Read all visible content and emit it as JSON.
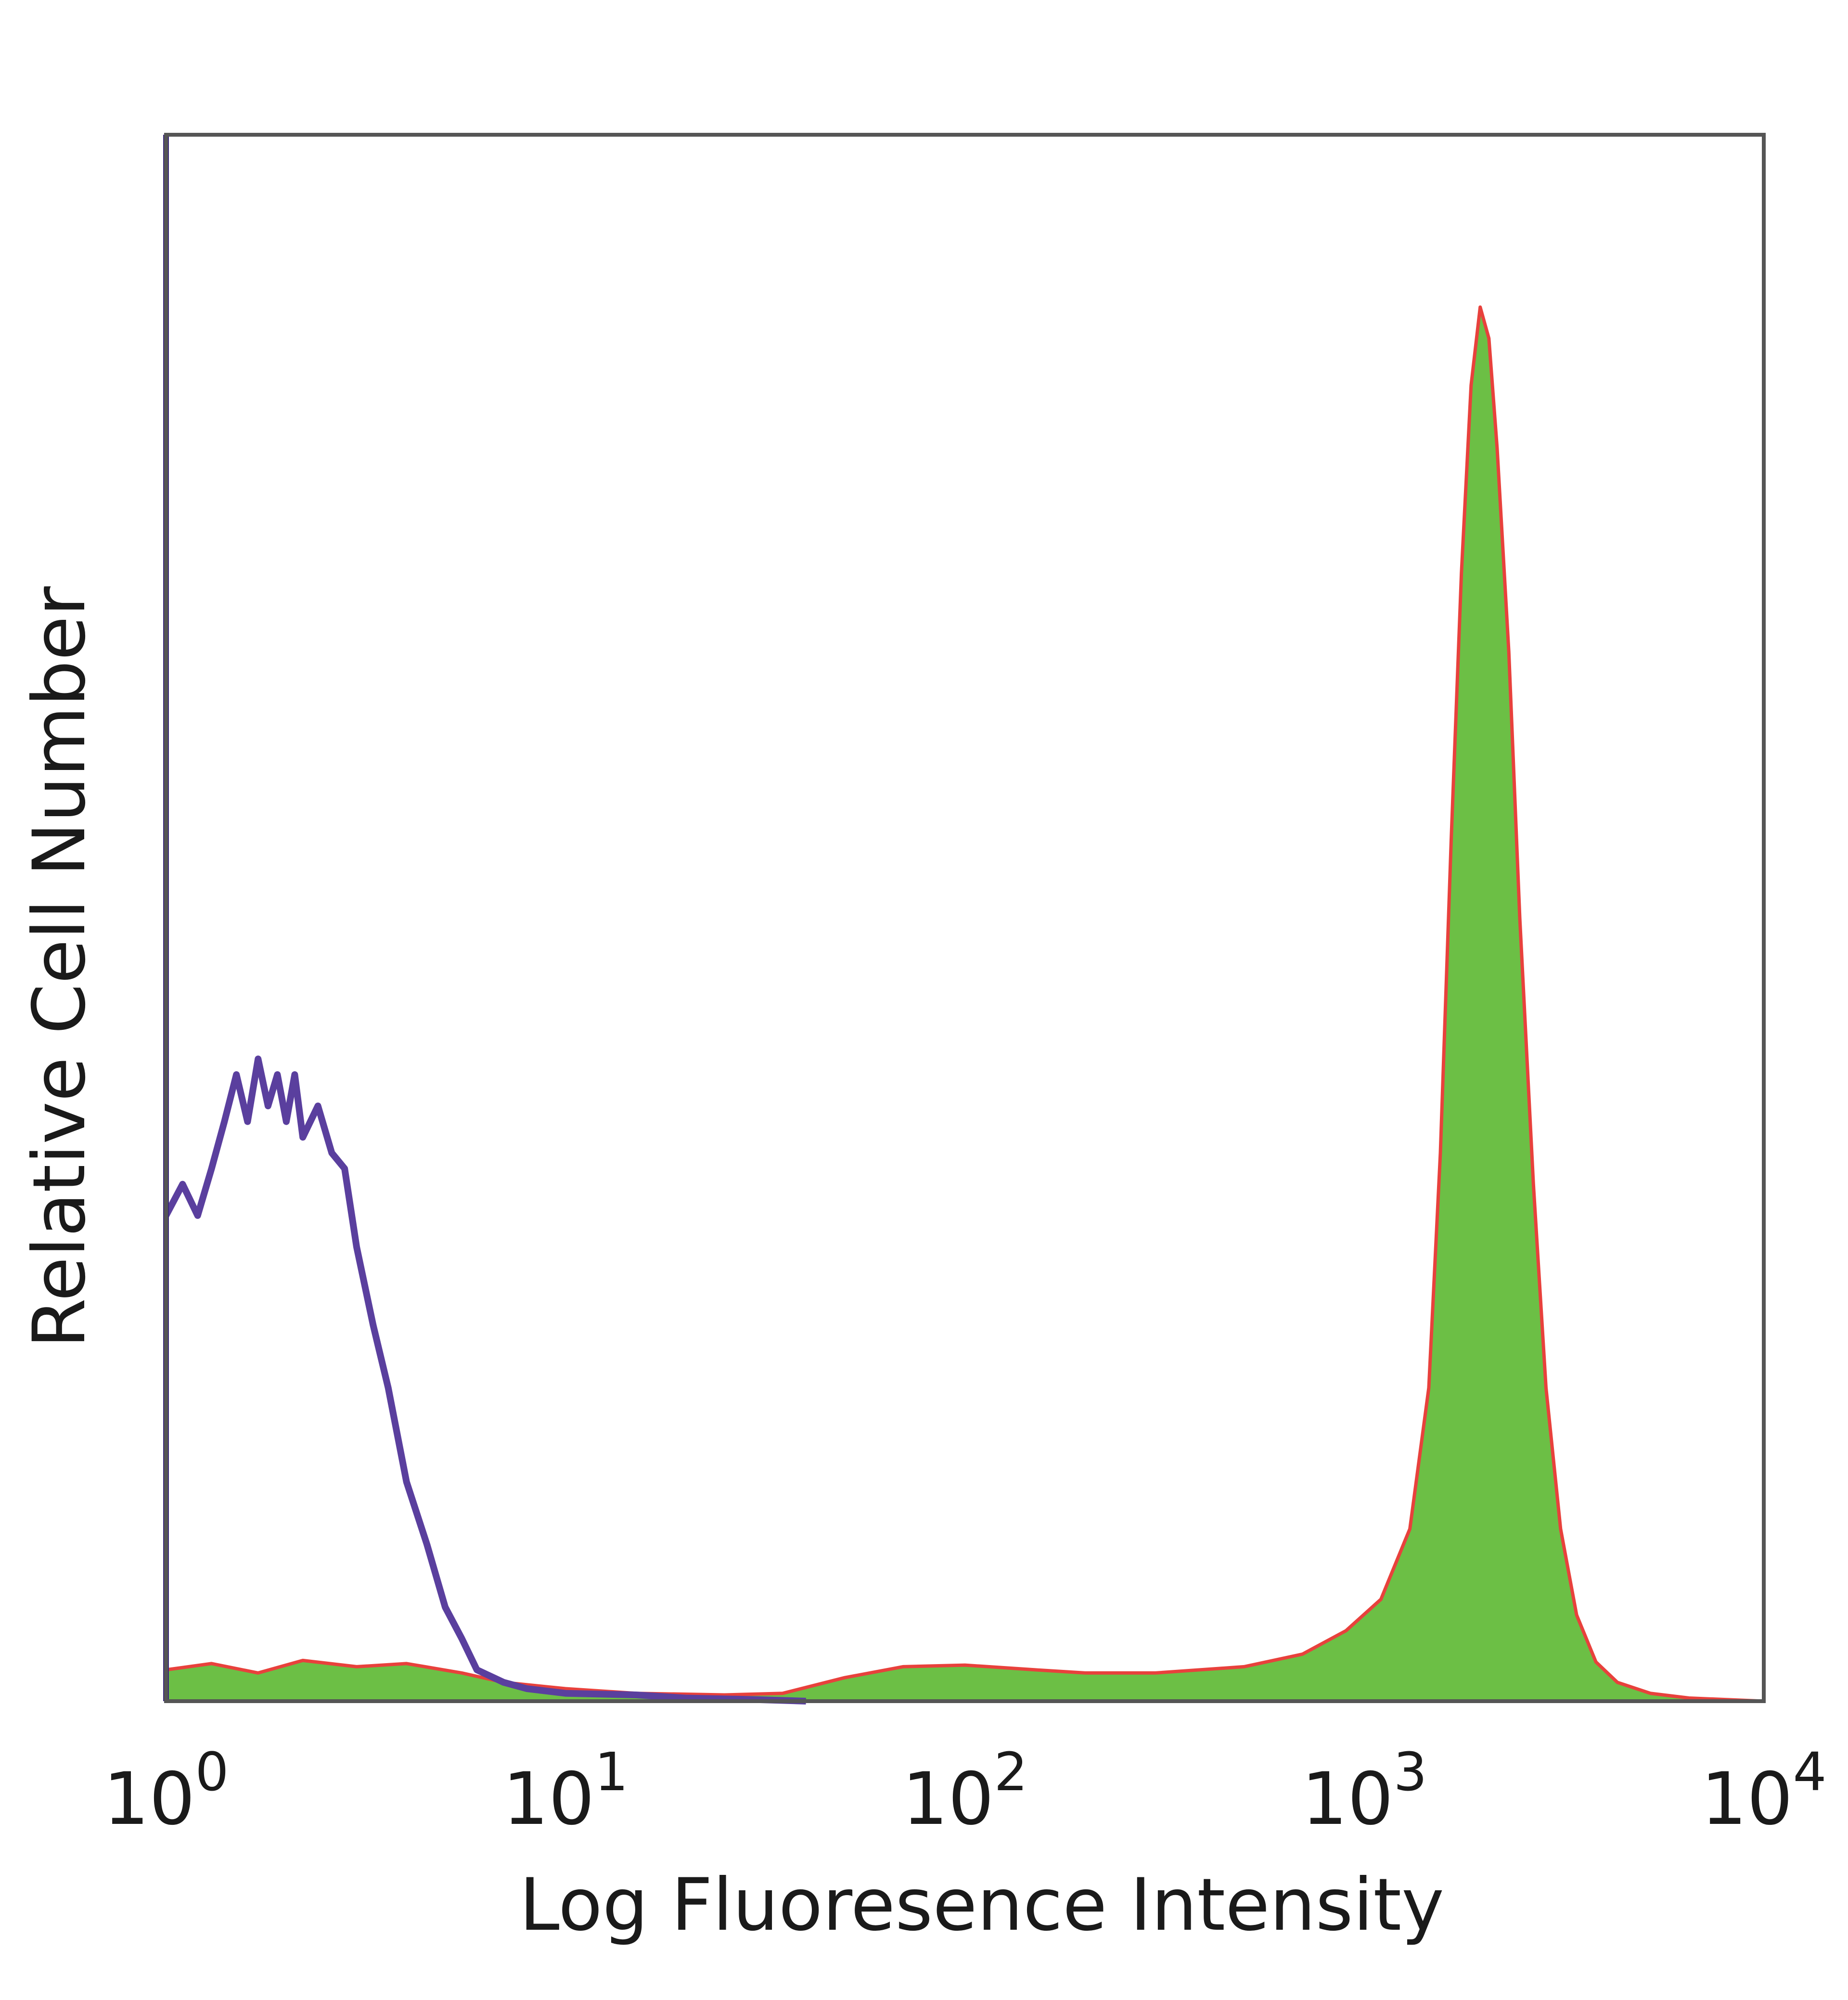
{
  "chart_data": {
    "type": "area",
    "title": "",
    "xlabel": "Log Fluoresence Intensity",
    "ylabel": "Relative Cell Number",
    "x_scale": "log",
    "xlim": [
      1,
      10000
    ],
    "ylim": [
      0,
      100
    ],
    "x_ticks": [
      {
        "value": 1,
        "base": "10",
        "exp": "0"
      },
      {
        "value": 10,
        "base": "10",
        "exp": "1"
      },
      {
        "value": 100,
        "base": "10",
        "exp": "2"
      },
      {
        "value": 1000,
        "base": "10",
        "exp": "3"
      },
      {
        "value": 10000,
        "base": "10",
        "exp": "4"
      }
    ],
    "grid": false,
    "legend": "none",
    "series": [
      {
        "style": "filled",
        "fill_color": "#6cbf45",
        "edge_color": "#e8413c",
        "points": [
          [
            1.0,
            2
          ],
          [
            1.3,
            2.4
          ],
          [
            1.7,
            1.8
          ],
          [
            2.2,
            2.6
          ],
          [
            3.0,
            2.2
          ],
          [
            4.0,
            2.4
          ],
          [
            5.5,
            1.8
          ],
          [
            7.0,
            1.2
          ],
          [
            10,
            0.8
          ],
          [
            15,
            0.5
          ],
          [
            25,
            0.4
          ],
          [
            35,
            0.5
          ],
          [
            50,
            1.5
          ],
          [
            70,
            2.2
          ],
          [
            100,
            2.3
          ],
          [
            150,
            2.0
          ],
          [
            200,
            1.8
          ],
          [
            300,
            1.8
          ],
          [
            500,
            2.2
          ],
          [
            700,
            3.0
          ],
          [
            900,
            4.5
          ],
          [
            1100,
            6.5
          ],
          [
            1300,
            11
          ],
          [
            1450,
            20
          ],
          [
            1550,
            35
          ],
          [
            1650,
            55
          ],
          [
            1750,
            72
          ],
          [
            1850,
            84
          ],
          [
            1950,
            89
          ],
          [
            2050,
            87
          ],
          [
            2150,
            80
          ],
          [
            2300,
            67
          ],
          [
            2450,
            50
          ],
          [
            2650,
            33
          ],
          [
            2850,
            20
          ],
          [
            3100,
            11
          ],
          [
            3400,
            5.5
          ],
          [
            3800,
            2.5
          ],
          [
            4300,
            1.2
          ],
          [
            5200,
            0.5
          ],
          [
            6500,
            0.2
          ],
          [
            10000,
            0
          ]
        ]
      },
      {
        "style": "line",
        "color": "#5a3f9e",
        "points": [
          [
            1.0,
            31
          ],
          [
            1.1,
            33
          ],
          [
            1.2,
            31
          ],
          [
            1.3,
            34
          ],
          [
            1.4,
            37
          ],
          [
            1.5,
            40
          ],
          [
            1.6,
            37
          ],
          [
            1.7,
            41
          ],
          [
            1.8,
            38
          ],
          [
            1.9,
            40
          ],
          [
            2.0,
            37
          ],
          [
            2.1,
            40
          ],
          [
            2.2,
            36
          ],
          [
            2.4,
            38
          ],
          [
            2.6,
            35
          ],
          [
            2.8,
            34
          ],
          [
            3.0,
            29
          ],
          [
            3.3,
            24
          ],
          [
            3.6,
            20
          ],
          [
            4.0,
            14
          ],
          [
            4.5,
            10
          ],
          [
            5.0,
            6
          ],
          [
            5.5,
            4
          ],
          [
            6.0,
            2
          ],
          [
            7.0,
            1.2
          ],
          [
            8.0,
            0.8
          ],
          [
            10,
            0.5
          ],
          [
            15,
            0.4
          ],
          [
            20,
            0.2
          ],
          [
            30,
            0.1
          ],
          [
            40,
            0
          ]
        ]
      }
    ]
  }
}
